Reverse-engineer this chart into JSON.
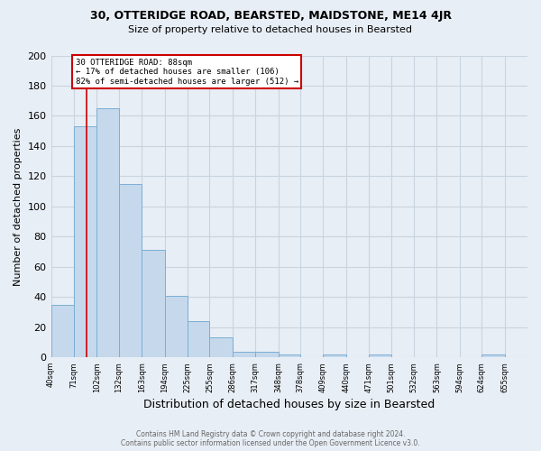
{
  "title1": "30, OTTERIDGE ROAD, BEARSTED, MAIDSTONE, ME14 4JR",
  "title2": "Size of property relative to detached houses in Bearsted",
  "xlabel": "Distribution of detached houses by size in Bearsted",
  "ylabel": "Number of detached properties",
  "footnote": "Contains HM Land Registry data © Crown copyright and database right 2024.\nContains public sector information licensed under the Open Government Licence v3.0.",
  "bin_edges": [
    40,
    71,
    102,
    132,
    163,
    194,
    225,
    255,
    286,
    317,
    348,
    378,
    409,
    440,
    471,
    501,
    532,
    563,
    594,
    624,
    655
  ],
  "bar_heights": [
    35,
    153,
    165,
    115,
    71,
    41,
    24,
    13,
    4,
    4,
    2,
    0,
    2,
    0,
    2,
    0,
    0,
    0,
    0,
    2
  ],
  "bar_color": "#c5d8ec",
  "bar_edge_color": "#7aafd4",
  "vline_x": 88,
  "vline_color": "#cc0000",
  "annotation_text": "30 OTTERIDGE ROAD: 88sqm\n← 17% of detached houses are smaller (106)\n82% of semi-detached houses are larger (512) →",
  "annotation_box_facecolor": "white",
  "annotation_box_edgecolor": "#cc0000",
  "ylim": [
    0,
    200
  ],
  "yticks": [
    0,
    20,
    40,
    60,
    80,
    100,
    120,
    140,
    160,
    180,
    200
  ],
  "grid_color": "#c8d4e0",
  "background_color": "#e8eef5",
  "title1_fontsize": 9,
  "title2_fontsize": 8,
  "ylabel_fontsize": 8,
  "xlabel_fontsize": 9,
  "ytick_fontsize": 8,
  "xtick_fontsize": 6,
  "footnote_fontsize": 5.5,
  "footnote_color": "#666666"
}
